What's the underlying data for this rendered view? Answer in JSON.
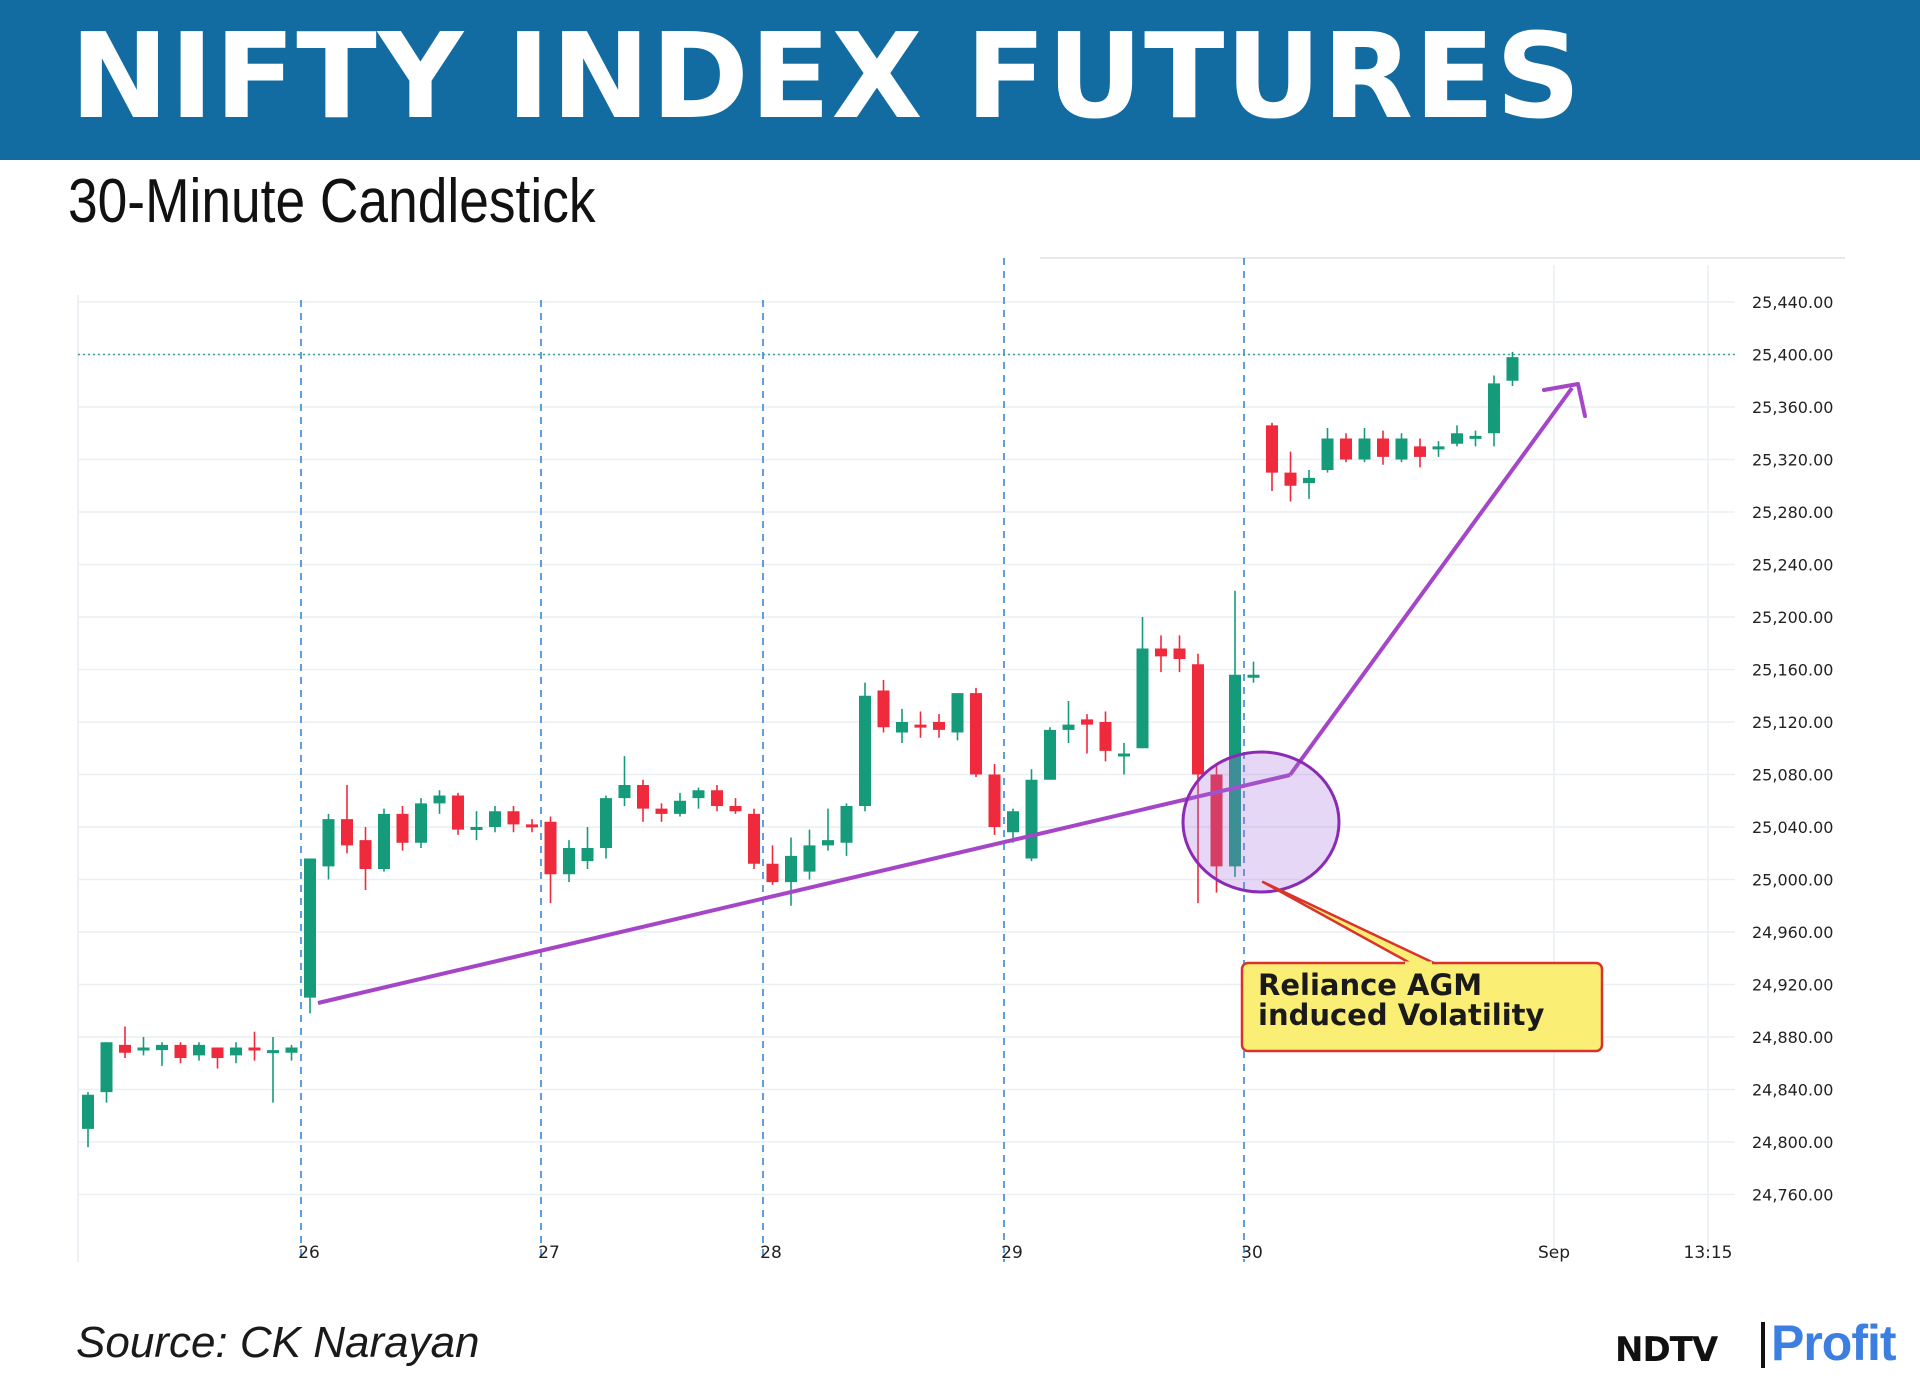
{
  "header": {
    "title": "NIFTY INDEX FUTURES",
    "subtitle": "30-Minute Candlestick"
  },
  "footer": {
    "source": "Source: CK Narayan",
    "logo_left": "NDTV",
    "logo_right": "Profit"
  },
  "colors": {
    "banner": "#136ca1",
    "up": "#159b7a",
    "down": "#ee2a3c",
    "trendline": "#a545c7",
    "callout_fill": "#fbee74",
    "callout_border": "#d9342b"
  },
  "chart_data": {
    "type": "candlestick",
    "title": "NIFTY INDEX FUTURES",
    "subtitle": "30-Minute Candlestick",
    "ylim": [
      24720,
      25480
    ],
    "y_ticks": [
      "25,440.00",
      "25,400.00",
      "25,360.00",
      "25,320.00",
      "25,280.00",
      "25,240.00",
      "25,200.00",
      "25,160.00",
      "25,120.00",
      "25,080.00",
      "25,040.00",
      "25,000.00",
      "24,960.00",
      "24,920.00",
      "24,880.00",
      "24,840.00",
      "24,800.00",
      "24,760.00"
    ],
    "x_labels": [
      "26",
      "27",
      "28",
      "29",
      "30",
      "Sep",
      "13:15"
    ],
    "day_separators": [
      "26",
      "27",
      "28",
      "29",
      "30"
    ],
    "last_price": 25400,
    "candles": [
      {
        "o": 24810,
        "h": 24838,
        "l": 24796,
        "c": 24836
      },
      {
        "o": 24838,
        "h": 24876,
        "l": 24830,
        "c": 24876
      },
      {
        "o": 24874,
        "h": 24888,
        "l": 24864,
        "c": 24868
      },
      {
        "o": 24870,
        "h": 24880,
        "l": 24866,
        "c": 24872
      },
      {
        "o": 24870,
        "h": 24876,
        "l": 24858,
        "c": 24874
      },
      {
        "o": 24874,
        "h": 24876,
        "l": 24860,
        "c": 24864
      },
      {
        "o": 24866,
        "h": 24876,
        "l": 24862,
        "c": 24874
      },
      {
        "o": 24872,
        "h": 24872,
        "l": 24856,
        "c": 24864
      },
      {
        "o": 24866,
        "h": 24876,
        "l": 24860,
        "c": 24872
      },
      {
        "o": 24872,
        "h": 24884,
        "l": 24862,
        "c": 24870
      },
      {
        "o": 24870,
        "h": 24880,
        "l": 24830,
        "c": 24870
      },
      {
        "o": 24868,
        "h": 24874,
        "l": 24862,
        "c": 24872
      },
      {
        "o": 24910,
        "h": 25016,
        "l": 24898,
        "c": 25016
      },
      {
        "o": 25010,
        "h": 25050,
        "l": 25000,
        "c": 25046
      },
      {
        "o": 25046,
        "h": 25072,
        "l": 25020,
        "c": 25026
      },
      {
        "o": 25030,
        "h": 25040,
        "l": 24992,
        "c": 25008
      },
      {
        "o": 25008,
        "h": 25054,
        "l": 25006,
        "c": 25050
      },
      {
        "o": 25050,
        "h": 25056,
        "l": 25022,
        "c": 25028
      },
      {
        "o": 25028,
        "h": 25062,
        "l": 25024,
        "c": 25058
      },
      {
        "o": 25058,
        "h": 25068,
        "l": 25050,
        "c": 25064
      },
      {
        "o": 25064,
        "h": 25066,
        "l": 25034,
        "c": 25038
      },
      {
        "o": 25038,
        "h": 25052,
        "l": 25030,
        "c": 25040
      },
      {
        "o": 25040,
        "h": 25056,
        "l": 25036,
        "c": 25052
      },
      {
        "o": 25052,
        "h": 25056,
        "l": 25036,
        "c": 25042
      },
      {
        "o": 25042,
        "h": 25046,
        "l": 25036,
        "c": 25040
      },
      {
        "o": 25044,
        "h": 25048,
        "l": 24982,
        "c": 25004
      },
      {
        "o": 25004,
        "h": 25030,
        "l": 24998,
        "c": 25024
      },
      {
        "o": 25014,
        "h": 25040,
        "l": 25008,
        "c": 25024
      },
      {
        "o": 25024,
        "h": 25064,
        "l": 25016,
        "c": 25062
      },
      {
        "o": 25062,
        "h": 25094,
        "l": 25056,
        "c": 25072
      },
      {
        "o": 25072,
        "h": 25076,
        "l": 25044,
        "c": 25054
      },
      {
        "o": 25054,
        "h": 25058,
        "l": 25044,
        "c": 25050
      },
      {
        "o": 25050,
        "h": 25066,
        "l": 25048,
        "c": 25060
      },
      {
        "o": 25062,
        "h": 25070,
        "l": 25054,
        "c": 25068
      },
      {
        "o": 25068,
        "h": 25072,
        "l": 25052,
        "c": 25056
      },
      {
        "o": 25056,
        "h": 25062,
        "l": 25050,
        "c": 25052
      },
      {
        "o": 25050,
        "h": 25054,
        "l": 25008,
        "c": 25012
      },
      {
        "o": 25012,
        "h": 25026,
        "l": 24996,
        "c": 24998
      },
      {
        "o": 24998,
        "h": 25032,
        "l": 24980,
        "c": 25018
      },
      {
        "o": 25006,
        "h": 25038,
        "l": 25000,
        "c": 25026
      },
      {
        "o": 25026,
        "h": 25054,
        "l": 25022,
        "c": 25030
      },
      {
        "o": 25028,
        "h": 25058,
        "l": 25018,
        "c": 25056
      },
      {
        "o": 25056,
        "h": 25150,
        "l": 25052,
        "c": 25140
      },
      {
        "o": 25144,
        "h": 25152,
        "l": 25112,
        "c": 25116
      },
      {
        "o": 25112,
        "h": 25130,
        "l": 25104,
        "c": 25120
      },
      {
        "o": 25118,
        "h": 25128,
        "l": 25108,
        "c": 25116
      },
      {
        "o": 25120,
        "h": 25126,
        "l": 25108,
        "c": 25114
      },
      {
        "o": 25112,
        "h": 25142,
        "l": 25106,
        "c": 25142
      },
      {
        "o": 25142,
        "h": 25146,
        "l": 25078,
        "c": 25080
      },
      {
        "o": 25080,
        "h": 25088,
        "l": 25034,
        "c": 25040
      },
      {
        "o": 25036,
        "h": 25054,
        "l": 25028,
        "c": 25052
      },
      {
        "o": 25016,
        "h": 25084,
        "l": 25014,
        "c": 25076
      },
      {
        "o": 25076,
        "h": 25116,
        "l": 25076,
        "c": 25114
      },
      {
        "o": 25114,
        "h": 25136,
        "l": 25104,
        "c": 25118
      },
      {
        "o": 25122,
        "h": 25126,
        "l": 25096,
        "c": 25118
      },
      {
        "o": 25120,
        "h": 25128,
        "l": 25090,
        "c": 25098
      },
      {
        "o": 25096,
        "h": 25104,
        "l": 25080,
        "c": 25096
      },
      {
        "o": 25100,
        "h": 25200,
        "l": 25100,
        "c": 25176
      },
      {
        "o": 25176,
        "h": 25186,
        "l": 25158,
        "c": 25170
      },
      {
        "o": 25176,
        "h": 25186,
        "l": 25158,
        "c": 25168
      },
      {
        "o": 25164,
        "h": 25172,
        "l": 24982,
        "c": 25080
      },
      {
        "o": 25080,
        "h": 25088,
        "l": 24990,
        "c": 25010
      },
      {
        "o": 25010,
        "h": 25220,
        "l": 25002,
        "c": 25156
      },
      {
        "o": 25156,
        "h": 25166,
        "l": 25150,
        "c": 25156
      },
      {
        "o": 25346,
        "h": 25348,
        "l": 25296,
        "c": 25310
      },
      {
        "o": 25310,
        "h": 25326,
        "l": 25288,
        "c": 25300
      },
      {
        "o": 25302,
        "h": 25312,
        "l": 25290,
        "c": 25306
      },
      {
        "o": 25312,
        "h": 25344,
        "l": 25310,
        "c": 25336
      },
      {
        "o": 25336,
        "h": 25340,
        "l": 25318,
        "c": 25320
      },
      {
        "o": 25320,
        "h": 25344,
        "l": 25318,
        "c": 25336
      },
      {
        "o": 25336,
        "h": 25342,
        "l": 25316,
        "c": 25322
      },
      {
        "o": 25320,
        "h": 25340,
        "l": 25318,
        "c": 25336
      },
      {
        "o": 25330,
        "h": 25336,
        "l": 25314,
        "c": 25322
      },
      {
        "o": 25328,
        "h": 25334,
        "l": 25322,
        "c": 25330
      },
      {
        "o": 25332,
        "h": 25346,
        "l": 25330,
        "c": 25340
      },
      {
        "o": 25338,
        "h": 25342,
        "l": 25330,
        "c": 25338
      },
      {
        "o": 25340,
        "h": 25384,
        "l": 25330,
        "c": 25378
      },
      {
        "o": 25380,
        "h": 25402,
        "l": 25376,
        "c": 25398
      }
    ],
    "annotations": [
      {
        "type": "trendline",
        "from": [
          "26",
          24910
        ],
        "to": [
          "29",
          25076
        ]
      },
      {
        "type": "arrow",
        "from": [
          "29",
          25076
        ],
        "to": [
          "Sep",
          25376
        ]
      },
      {
        "type": "ellipse",
        "label": "Reliance AGM induced Volatility"
      }
    ],
    "callout_text": "Reliance AGM induced Volatility"
  }
}
